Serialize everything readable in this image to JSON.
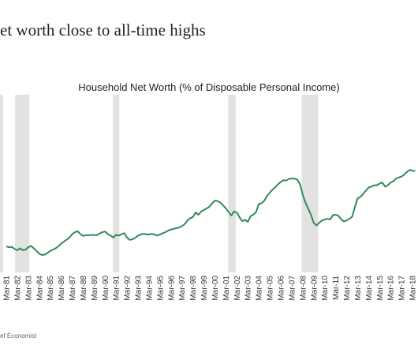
{
  "page_title": "et worth close to all-time highs",
  "footer": "ef Economist",
  "chart_data": {
    "type": "line",
    "title": "Household Net Worth (% of Disposable Personal Income)",
    "color": "#2e8b57",
    "band_color": "#e2e2e2",
    "recessions": [
      [
        1980.5,
        1980.9
      ],
      [
        1982.0,
        1983.3
      ],
      [
        1990.9,
        1991.5
      ],
      [
        2001.4,
        2002.1
      ],
      [
        2008.1,
        2009.6
      ]
    ],
    "xlim": [
      1980.625,
      2018.7
    ],
    "ylim": [
      380,
      910
    ],
    "xticks": [
      {
        "value": 1981.2,
        "label": "Mar-81"
      },
      {
        "value": 1982.2,
        "label": "Mar-82"
      },
      {
        "value": 1983.2,
        "label": "Mar-83"
      },
      {
        "value": 1984.2,
        "label": "Mar-84"
      },
      {
        "value": 1985.2,
        "label": "Mar-85"
      },
      {
        "value": 1986.2,
        "label": "Mar-86"
      },
      {
        "value": 1987.2,
        "label": "Mar-87"
      },
      {
        "value": 1988.2,
        "label": "Mar-88"
      },
      {
        "value": 1989.2,
        "label": "Mar-89"
      },
      {
        "value": 1990.2,
        "label": "Mar-90"
      },
      {
        "value": 1991.2,
        "label": "Mar-91"
      },
      {
        "value": 1992.2,
        "label": "Mar-92"
      },
      {
        "value": 1993.2,
        "label": "Mar-93"
      },
      {
        "value": 1994.2,
        "label": "Mar-94"
      },
      {
        "value": 1995.2,
        "label": "Mar-95"
      },
      {
        "value": 1996.2,
        "label": "Mar-96"
      },
      {
        "value": 1997.2,
        "label": "Mar-97"
      },
      {
        "value": 1998.2,
        "label": "Mar-98"
      },
      {
        "value": 1999.2,
        "label": "Mar-99"
      },
      {
        "value": 2000.2,
        "label": "Mar-00"
      },
      {
        "value": 2001.2,
        "label": "Mar-01"
      },
      {
        "value": 2002.2,
        "label": "Mar-02"
      },
      {
        "value": 2003.2,
        "label": "Mar-03"
      },
      {
        "value": 2004.2,
        "label": "Mar-04"
      },
      {
        "value": 2005.2,
        "label": "Mar-05"
      },
      {
        "value": 2006.2,
        "label": "Mar-06"
      },
      {
        "value": 2007.2,
        "label": "Mar-07"
      },
      {
        "value": 2008.2,
        "label": "Mar-08"
      },
      {
        "value": 2009.2,
        "label": "Mar-09"
      },
      {
        "value": 2010.2,
        "label": "Mar-10"
      },
      {
        "value": 2011.2,
        "label": "Mar-11"
      },
      {
        "value": 2012.2,
        "label": "Mar-12"
      },
      {
        "value": 2013.2,
        "label": "Mar-13"
      },
      {
        "value": 2014.2,
        "label": "Mar-14"
      },
      {
        "value": 2015.2,
        "label": "Mar-15"
      },
      {
        "value": 2016.2,
        "label": "Mar-16"
      },
      {
        "value": 2017.2,
        "label": "Mar-17"
      },
      {
        "value": 2018.2,
        "label": "Mar-18"
      }
    ],
    "x": [
      1981.2,
      1981.45,
      1981.7,
      1981.95,
      1982.2,
      1982.45,
      1982.7,
      1982.95,
      1983.2,
      1983.45,
      1983.7,
      1983.95,
      1984.2,
      1984.45,
      1984.7,
      1984.95,
      1985.2,
      1985.45,
      1985.7,
      1985.95,
      1986.2,
      1986.45,
      1986.7,
      1986.95,
      1987.2,
      1987.45,
      1987.7,
      1987.95,
      1988.2,
      1988.45,
      1988.7,
      1988.95,
      1989.2,
      1989.45,
      1989.7,
      1989.95,
      1990.2,
      1990.45,
      1990.7,
      1990.95,
      1991.2,
      1991.45,
      1991.7,
      1991.95,
      1992.2,
      1992.45,
      1992.7,
      1992.95,
      1993.2,
      1993.45,
      1993.7,
      1993.95,
      1994.2,
      1994.45,
      1994.7,
      1994.95,
      1995.2,
      1995.45,
      1995.7,
      1995.95,
      1996.2,
      1996.45,
      1996.7,
      1996.95,
      1997.2,
      1997.45,
      1997.7,
      1997.95,
      1998.2,
      1998.45,
      1998.7,
      1998.95,
      1999.2,
      1999.45,
      1999.7,
      1999.95,
      2000.2,
      2000.45,
      2000.7,
      2000.95,
      2001.2,
      2001.45,
      2001.7,
      2001.95,
      2002.2,
      2002.45,
      2002.7,
      2002.95,
      2003.2,
      2003.45,
      2003.7,
      2003.95,
      2004.2,
      2004.45,
      2004.7,
      2004.95,
      2005.2,
      2005.45,
      2005.7,
      2005.95,
      2006.2,
      2006.45,
      2006.7,
      2006.95,
      2007.2,
      2007.45,
      2007.7,
      2007.95,
      2008.2,
      2008.45,
      2008.7,
      2008.95,
      2009.2,
      2009.45,
      2009.7,
      2009.95,
      2010.2,
      2010.45,
      2010.7,
      2010.95,
      2011.2,
      2011.45,
      2011.7,
      2011.95,
      2012.2,
      2012.45,
      2012.7,
      2012.95,
      2013.2,
      2013.45,
      2013.7,
      2013.95,
      2014.2,
      2014.45,
      2014.7,
      2014.95,
      2015.2,
      2015.45,
      2015.7,
      2015.95,
      2016.2,
      2016.45,
      2016.7,
      2016.95,
      2017.2,
      2017.45,
      2017.7,
      2017.95,
      2018.2,
      2018.45
    ],
    "values": [
      458,
      455,
      456,
      450,
      446,
      452,
      446,
      448,
      455,
      459,
      452,
      444,
      436,
      432,
      433,
      438,
      444,
      448,
      452,
      458,
      466,
      472,
      478,
      484,
      494,
      500,
      503,
      494,
      489,
      491,
      491,
      492,
      492,
      491,
      496,
      500,
      502,
      494,
      490,
      484,
      492,
      490,
      494,
      497,
      484,
      477,
      479,
      483,
      490,
      493,
      495,
      494,
      493,
      495,
      493,
      490,
      493,
      497,
      500,
      505,
      508,
      510,
      512,
      514,
      518,
      524,
      535,
      542,
      545,
      559,
      552,
      562,
      566,
      571,
      576,
      586,
      594,
      593,
      588,
      580,
      571,
      560,
      550,
      562,
      558,
      544,
      533,
      537,
      531,
      548,
      552,
      560,
      584,
      586,
      594,
      608,
      618,
      627,
      634,
      643,
      650,
      655,
      654,
      659,
      660,
      660,
      657,
      643,
      612,
      588,
      570,
      552,
      528,
      520,
      528,
      535,
      538,
      540,
      538,
      551,
      552,
      549,
      538,
      532,
      535,
      540,
      546,
      575,
      601,
      605,
      614,
      624,
      633,
      636,
      640,
      640,
      645,
      648,
      636,
      640,
      648,
      652,
      660,
      663,
      666,
      672,
      680,
      686,
      683,
      683
    ]
  }
}
